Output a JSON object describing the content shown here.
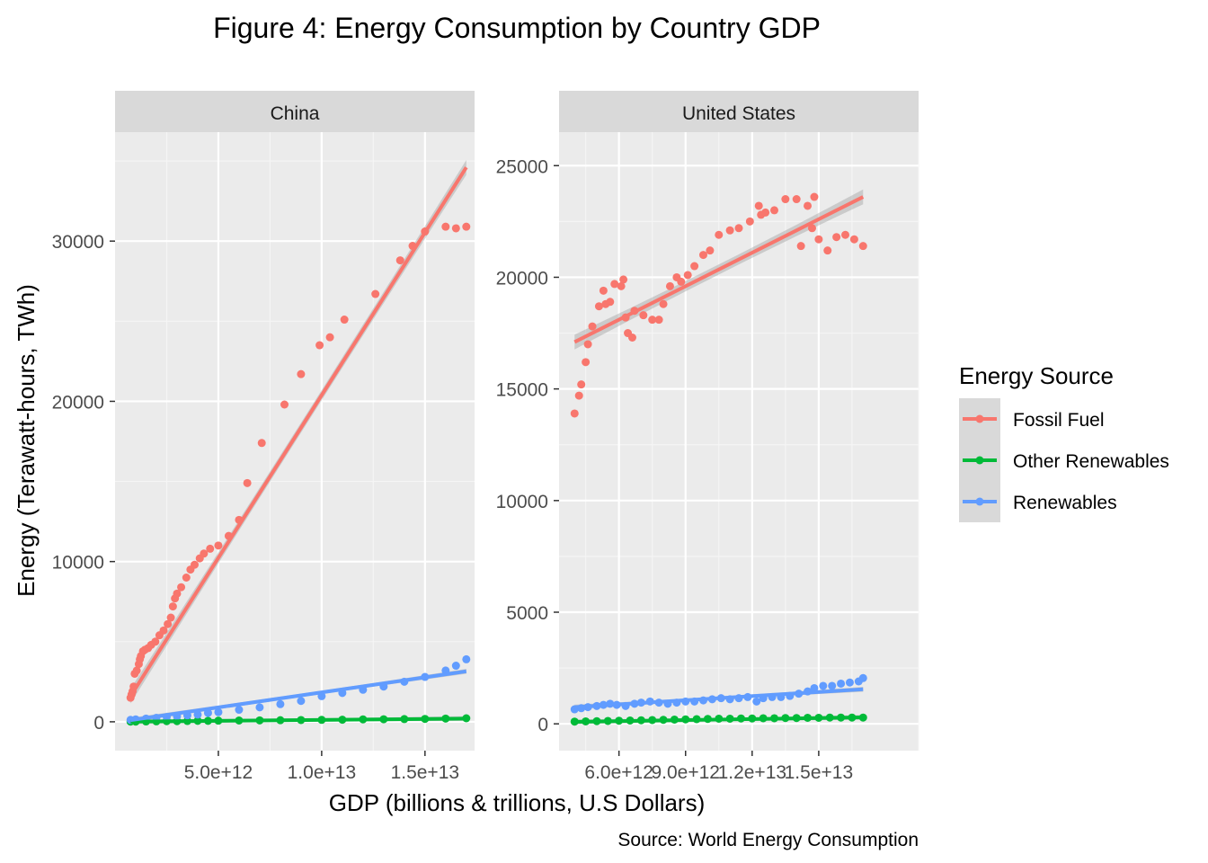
{
  "title": "Figure 4: Energy Consumption by Country GDP",
  "caption": "Source: World Energy Consumption",
  "xlabel": "GDP (billions & trillions, U.S Dollars)",
  "ylabel": "Energy (Terawatt-hours, TWh)",
  "legend": {
    "title": "Energy Source",
    "placement": "right",
    "items": [
      {
        "label": "Fossil Fuel",
        "color": "#F8766D"
      },
      {
        "label": "Other Renewables",
        "color": "#00BA38"
      },
      {
        "label": "Renewables",
        "color": "#619CFF"
      }
    ]
  },
  "chart_data": [
    {
      "type": "scatter",
      "facet": "China",
      "grid": true,
      "smooth": "linear fit with confidence band",
      "xlim": [
        0,
        17400000000000
      ],
      "ylim": [
        -1800,
        36800
      ],
      "x_ticks": [
        5000000000000,
        10000000000000,
        15000000000000
      ],
      "x_tick_labels": [
        "5.0e+12",
        "1.0e+13",
        "1.5e+13"
      ],
      "y_ticks": [
        0,
        10000,
        20000,
        30000
      ],
      "y_tick_labels": [
        "0",
        "10000",
        "20000",
        "30000"
      ],
      "series": [
        {
          "name": "Fossil Fuel",
          "color": "#F8766D",
          "points": [
            [
              750000000000,
              1500
            ],
            [
              800000000000,
              1700
            ],
            [
              850000000000,
              1900
            ],
            [
              900000000000,
              2200
            ],
            [
              950000000000,
              3000
            ],
            [
              1050000000000,
              3200
            ],
            [
              1150000000000,
              3600
            ],
            [
              1200000000000,
              3900
            ],
            [
              1250000000000,
              4100
            ],
            [
              1350000000000,
              4400
            ],
            [
              1450000000000,
              4500
            ],
            [
              1600000000000,
              4600
            ],
            [
              1750000000000,
              4800
            ],
            [
              1950000000000,
              5000
            ],
            [
              2150000000000,
              5400
            ],
            [
              2350000000000,
              5700
            ],
            [
              2550000000000,
              6100
            ],
            [
              2700000000000,
              6500
            ],
            [
              2800000000000,
              7200
            ],
            [
              2900000000000,
              7700
            ],
            [
              3000000000000,
              8000
            ],
            [
              3200000000000,
              8400
            ],
            [
              3450000000000,
              9000
            ],
            [
              3650000000000,
              9500
            ],
            [
              3850000000000,
              9800
            ],
            [
              4100000000000,
              10200
            ],
            [
              4300000000000,
              10500
            ],
            [
              4600000000000,
              10800
            ],
            [
              5000000000000,
              11000
            ],
            [
              5500000000000,
              11600
            ],
            [
              6000000000000,
              12600
            ],
            [
              6400000000000,
              14900
            ],
            [
              7100000000000,
              17400
            ],
            [
              8200000000000,
              19800
            ],
            [
              9000000000000,
              21700
            ],
            [
              9900000000000,
              23500
            ],
            [
              10400000000000,
              24000
            ],
            [
              11100000000000,
              25100
            ],
            [
              12600000000000,
              26700
            ],
            [
              13800000000000,
              28800
            ],
            [
              14400000000000,
              29700
            ],
            [
              15000000000000,
              30600
            ],
            [
              16000000000000,
              30900
            ],
            [
              16500000000000,
              30800
            ],
            [
              17000000000000,
              30900
            ]
          ],
          "fit": [
            [
              750000000000,
              1600
            ],
            [
              17000000000000,
              34600
            ]
          ]
        },
        {
          "name": "Other Renewables",
          "color": "#00BA38",
          "points": [
            [
              750000000000,
              10
            ],
            [
              1000000000000,
              10
            ],
            [
              1500000000000,
              20
            ],
            [
              2000000000000,
              30
            ],
            [
              2500000000000,
              40
            ],
            [
              3000000000000,
              40
            ],
            [
              3500000000000,
              50
            ],
            [
              4000000000000,
              60
            ],
            [
              4500000000000,
              60
            ],
            [
              5000000000000,
              70
            ],
            [
              6000000000000,
              80
            ],
            [
              7000000000000,
              90
            ],
            [
              8000000000000,
              100
            ],
            [
              9000000000000,
              110
            ],
            [
              10000000000000,
              120
            ],
            [
              11000000000000,
              130
            ],
            [
              12000000000000,
              150
            ],
            [
              13000000000000,
              160
            ],
            [
              14000000000000,
              170
            ],
            [
              15000000000000,
              180
            ],
            [
              16000000000000,
              200
            ],
            [
              17000000000000,
              220
            ]
          ],
          "fit": [
            [
              750000000000,
              10
            ],
            [
              17000000000000,
              200
            ]
          ]
        },
        {
          "name": "Renewables",
          "color": "#619CFF",
          "points": [
            [
              750000000000,
              120
            ],
            [
              1000000000000,
              150
            ],
            [
              1500000000000,
              200
            ],
            [
              2000000000000,
              250
            ],
            [
              2500000000000,
              300
            ],
            [
              3000000000000,
              350
            ],
            [
              3500000000000,
              400
            ],
            [
              4000000000000,
              450
            ],
            [
              4500000000000,
              550
            ],
            [
              5000000000000,
              600
            ],
            [
              6000000000000,
              750
            ],
            [
              7000000000000,
              900
            ],
            [
              8000000000000,
              1100
            ],
            [
              9000000000000,
              1300
            ],
            [
              10000000000000,
              1600
            ],
            [
              11000000000000,
              1800
            ],
            [
              12000000000000,
              2000
            ],
            [
              13000000000000,
              2200
            ],
            [
              14000000000000,
              2500
            ],
            [
              15000000000000,
              2800
            ],
            [
              16000000000000,
              3200
            ],
            [
              16500000000000,
              3500
            ],
            [
              17000000000000,
              3900
            ]
          ],
          "fit": [
            [
              750000000000,
              100
            ],
            [
              17000000000000,
              3150
            ]
          ]
        }
      ]
    },
    {
      "type": "scatter",
      "facet": "United States",
      "grid": true,
      "smooth": "linear fit with confidence band",
      "xlim": [
        3300000000000,
        19500000000000
      ],
      "ylim": [
        -1200,
        26500
      ],
      "x_ticks": [
        6000000000000,
        9000000000000,
        12000000000000,
        15000000000000
      ],
      "x_tick_labels": [
        "6.0e+12",
        "9.0e+12",
        "1.2e+13",
        "1.5e+13"
      ],
      "y_ticks": [
        0,
        5000,
        10000,
        15000,
        20000,
        25000
      ],
      "y_tick_labels": [
        "0",
        "5000",
        "10000",
        "15000",
        "20000",
        "25000"
      ],
      "series": [
        {
          "name": "Fossil Fuel",
          "color": "#F8766D",
          "points": [
            [
              4000000000000,
              13900
            ],
            [
              4200000000000,
              14700
            ],
            [
              4300000000000,
              15200
            ],
            [
              4500000000000,
              16200
            ],
            [
              4600000000000,
              17000
            ],
            [
              4800000000000,
              17800
            ],
            [
              5100000000000,
              18700
            ],
            [
              5300000000000,
              19400
            ],
            [
              5400000000000,
              18800
            ],
            [
              5600000000000,
              18900
            ],
            [
              5800000000000,
              19700
            ],
            [
              6100000000000,
              19600
            ],
            [
              6200000000000,
              19900
            ],
            [
              6400000000000,
              17500
            ],
            [
              6600000000000,
              17300
            ],
            [
              6300000000000,
              18200
            ],
            [
              6700000000000,
              18500
            ],
            [
              7100000000000,
              18300
            ],
            [
              7500000000000,
              18100
            ],
            [
              7800000000000,
              18100
            ],
            [
              8000000000000,
              18800
            ],
            [
              8300000000000,
              19600
            ],
            [
              8600000000000,
              20000
            ],
            [
              8800000000000,
              19800
            ],
            [
              9100000000000,
              20100
            ],
            [
              9400000000000,
              20500
            ],
            [
              9800000000000,
              21000
            ],
            [
              10100000000000,
              21200
            ],
            [
              10500000000000,
              21900
            ],
            [
              11000000000000,
              22100
            ],
            [
              11400000000000,
              22200
            ],
            [
              11900000000000,
              22500
            ],
            [
              12300000000000,
              23200
            ],
            [
              12400000000000,
              22800
            ],
            [
              12600000000000,
              22900
            ],
            [
              13000000000000,
              23000
            ],
            [
              13500000000000,
              23500
            ],
            [
              14000000000000,
              23500
            ],
            [
              14200000000000,
              21400
            ],
            [
              14500000000000,
              23200
            ],
            [
              14700000000000,
              22200
            ],
            [
              14800000000000,
              23600
            ],
            [
              15000000000000,
              21700
            ],
            [
              15400000000000,
              21200
            ],
            [
              15800000000000,
              21800
            ],
            [
              16200000000000,
              21900
            ],
            [
              16600000000000,
              21700
            ],
            [
              17000000000000,
              21400
            ]
          ],
          "fit": [
            [
              4000000000000,
              17100
            ],
            [
              17000000000000,
              23600
            ]
          ]
        },
        {
          "name": "Other Renewables",
          "color": "#00BA38",
          "points": [
            [
              4000000000000,
              100
            ],
            [
              4500000000000,
              110
            ],
            [
              5000000000000,
              120
            ],
            [
              5500000000000,
              130
            ],
            [
              6000000000000,
              140
            ],
            [
              6500000000000,
              150
            ],
            [
              7000000000000,
              160
            ],
            [
              7500000000000,
              170
            ],
            [
              8000000000000,
              180
            ],
            [
              8500000000000,
              190
            ],
            [
              9000000000000,
              200
            ],
            [
              9500000000000,
              210
            ],
            [
              10000000000000,
              220
            ],
            [
              10500000000000,
              230
            ],
            [
              11000000000000,
              230
            ],
            [
              11500000000000,
              240
            ],
            [
              12000000000000,
              240
            ],
            [
              12500000000000,
              250
            ],
            [
              13000000000000,
              250
            ],
            [
              13500000000000,
              260
            ],
            [
              14000000000000,
              260
            ],
            [
              14500000000000,
              270
            ],
            [
              15000000000000,
              270
            ],
            [
              15500000000000,
              280
            ],
            [
              16000000000000,
              280
            ],
            [
              16500000000000,
              280
            ],
            [
              17000000000000,
              280
            ]
          ],
          "fit": [
            [
              4000000000000,
              90
            ],
            [
              17000000000000,
              290
            ]
          ]
        },
        {
          "name": "Renewables",
          "color": "#619CFF",
          "points": [
            [
              4000000000000,
              650
            ],
            [
              4300000000000,
              700
            ],
            [
              4600000000000,
              750
            ],
            [
              5000000000000,
              800
            ],
            [
              5300000000000,
              850
            ],
            [
              5600000000000,
              900
            ],
            [
              5900000000000,
              850
            ],
            [
              6300000000000,
              800
            ],
            [
              6700000000000,
              900
            ],
            [
              7000000000000,
              950
            ],
            [
              7400000000000,
              1000
            ],
            [
              7800000000000,
              950
            ],
            [
              8200000000000,
              900
            ],
            [
              8600000000000,
              950
            ],
            [
              9000000000000,
              1000
            ],
            [
              9400000000000,
              1000
            ],
            [
              9800000000000,
              1050
            ],
            [
              10200000000000,
              1100
            ],
            [
              10600000000000,
              1150
            ],
            [
              11000000000000,
              1100
            ],
            [
              11400000000000,
              1150
            ],
            [
              11800000000000,
              1200
            ],
            [
              12200000000000,
              1000
            ],
            [
              12500000000000,
              1150
            ],
            [
              12900000000000,
              1200
            ],
            [
              13300000000000,
              1200
            ],
            [
              13700000000000,
              1250
            ],
            [
              14100000000000,
              1350
            ],
            [
              14500000000000,
              1450
            ],
            [
              14800000000000,
              1600
            ],
            [
              15200000000000,
              1700
            ],
            [
              15600000000000,
              1700
            ],
            [
              16000000000000,
              1800
            ],
            [
              16400000000000,
              1850
            ],
            [
              16800000000000,
              1900
            ],
            [
              17000000000000,
              2050
            ]
          ],
          "fit": [
            [
              4000000000000,
              750
            ],
            [
              17000000000000,
              1550
            ]
          ]
        }
      ]
    }
  ]
}
